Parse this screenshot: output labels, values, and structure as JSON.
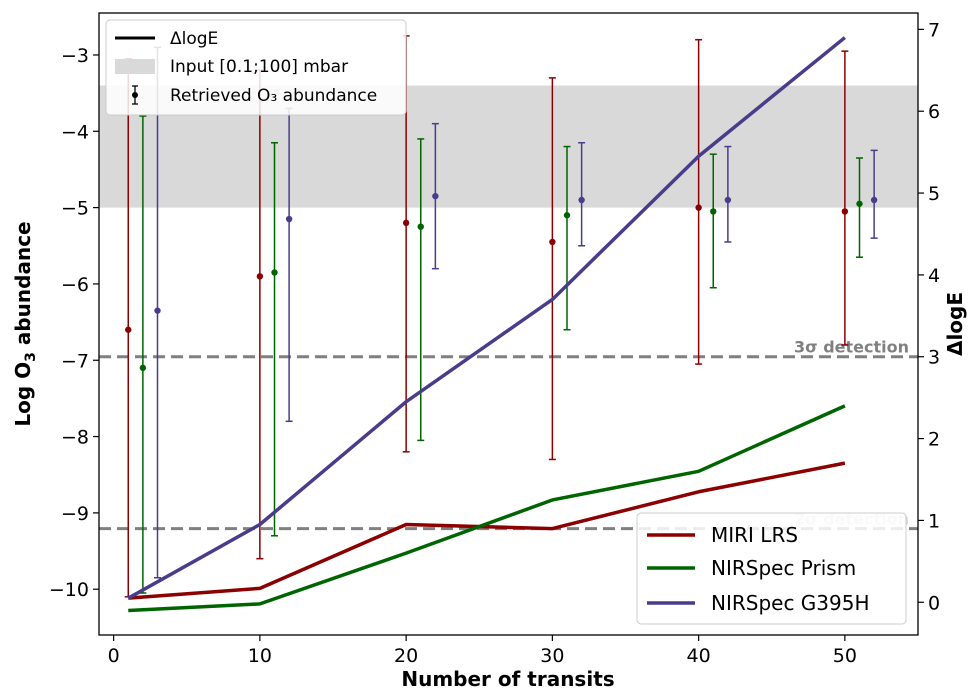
{
  "chart_data": {
    "type": "line",
    "xlabel": "Number of transits",
    "ylabel_left": "Log O$_3$ abundance",
    "ylabel_right": "ΔlogE",
    "xlim": [
      -1,
      55
    ],
    "ylim_left": [
      -10.6,
      -2.45
    ],
    "ylim_right": [
      -0.4,
      7.2
    ],
    "x_ticks": [
      0,
      10,
      20,
      30,
      40,
      50
    ],
    "y_left_ticks": [
      -10,
      -9,
      -8,
      -7,
      -6,
      -5,
      -4,
      -3
    ],
    "y_right_ticks": [
      0,
      1,
      2,
      3,
      4,
      5,
      6,
      7
    ],
    "input_band": {
      "label": "Input [0.1;100] mbar",
      "y_min": -5.0,
      "y_max": -3.4,
      "color": "#d9d9d9"
    },
    "thresholds": [
      {
        "label": "3σ detection",
        "deltaLogE": 3.0
      },
      {
        "label": "2σ detection",
        "deltaLogE": 0.9
      }
    ],
    "legend_top": {
      "line_label": "ΔlogE",
      "band_label": "Input [0.1;100] mbar",
      "errbar_label": "Retrieved O₃ abundance"
    },
    "x": [
      1,
      10,
      20,
      30,
      40,
      50
    ],
    "series": [
      {
        "name": "MIRI LRS",
        "color": "#8b0000",
        "deltaLogE": [
          0.05,
          0.17,
          0.95,
          0.9,
          1.35,
          1.7
        ],
        "abundance": {
          "x": [
            1,
            10,
            20,
            30,
            40,
            50
          ],
          "y": [
            -6.6,
            -5.9,
            -5.2,
            -5.45,
            -5.0,
            -5.05
          ],
          "err_low": [
            -10.1,
            -9.6,
            -8.2,
            -8.3,
            -7.05,
            -6.8
          ],
          "err_high": [
            -3.05,
            -3.2,
            -2.75,
            -3.3,
            -2.8,
            -2.95
          ]
        }
      },
      {
        "name": "NIRSpec Prism",
        "color": "#006400",
        "deltaLogE": [
          -0.1,
          -0.02,
          0.6,
          1.25,
          1.6,
          2.4
        ],
        "abundance": {
          "x": [
            2,
            11,
            21,
            31,
            41,
            51
          ],
          "y": [
            -7.1,
            -5.85,
            -5.25,
            -5.1,
            -5.05,
            -4.95
          ],
          "err_low": [
            -10.05,
            -9.3,
            -8.05,
            -6.6,
            -6.05,
            -5.65
          ],
          "err_high": [
            -3.8,
            -4.15,
            -4.1,
            -4.2,
            -4.3,
            -4.35
          ]
        }
      },
      {
        "name": "NIRSpec G395H",
        "color": "#483d8b",
        "deltaLogE": [
          0.05,
          0.95,
          2.45,
          3.7,
          5.45,
          6.9
        ],
        "abundance": {
          "x": [
            3,
            12,
            22,
            32,
            42,
            52
          ],
          "y": [
            -6.35,
            -5.15,
            -4.85,
            -4.9,
            -4.9,
            -4.9
          ],
          "err_low": [
            -9.85,
            -7.8,
            -5.8,
            -5.5,
            -5.45,
            -5.4
          ],
          "err_high": [
            -2.9,
            -3.7,
            -3.9,
            -4.15,
            -4.2,
            -4.25
          ]
        }
      }
    ]
  }
}
